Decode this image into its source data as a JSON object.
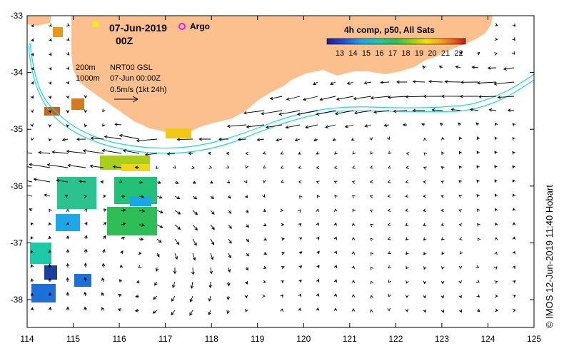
{
  "map": {
    "date_title": "07-Jun-2019",
    "time_title": "00Z",
    "argo_label": "Argo",
    "legend": {
      "depth_200": "200m",
      "depth_1000": "1000m",
      "product": "NRT00 GSL",
      "timestamp": "07-Jun 00:00Z",
      "scale": "0.5m/s (1kt 24h)"
    },
    "colorbar": {
      "title": "4h comp, p50, All Sats",
      "labels": [
        "13",
        "14",
        "15",
        "16",
        "17",
        "18",
        "19",
        "20",
        "21",
        "22"
      ],
      "min": 13,
      "max": 22
    },
    "axes": {
      "lon_labels": [
        "114",
        "115",
        "116",
        "117",
        "118",
        "119",
        "120",
        "121",
        "122",
        "123",
        "124",
        "125"
      ],
      "lat_labels": [
        "-33",
        "-34",
        "-35",
        "-36",
        "-37",
        "-38"
      ]
    },
    "credit": "© IMOS 12-Jun-2019 11:40 Hobart",
    "colors": {
      "land": "#fbc08e",
      "isobath": "#1ed8e6",
      "argo": "#e020e0"
    }
  }
}
